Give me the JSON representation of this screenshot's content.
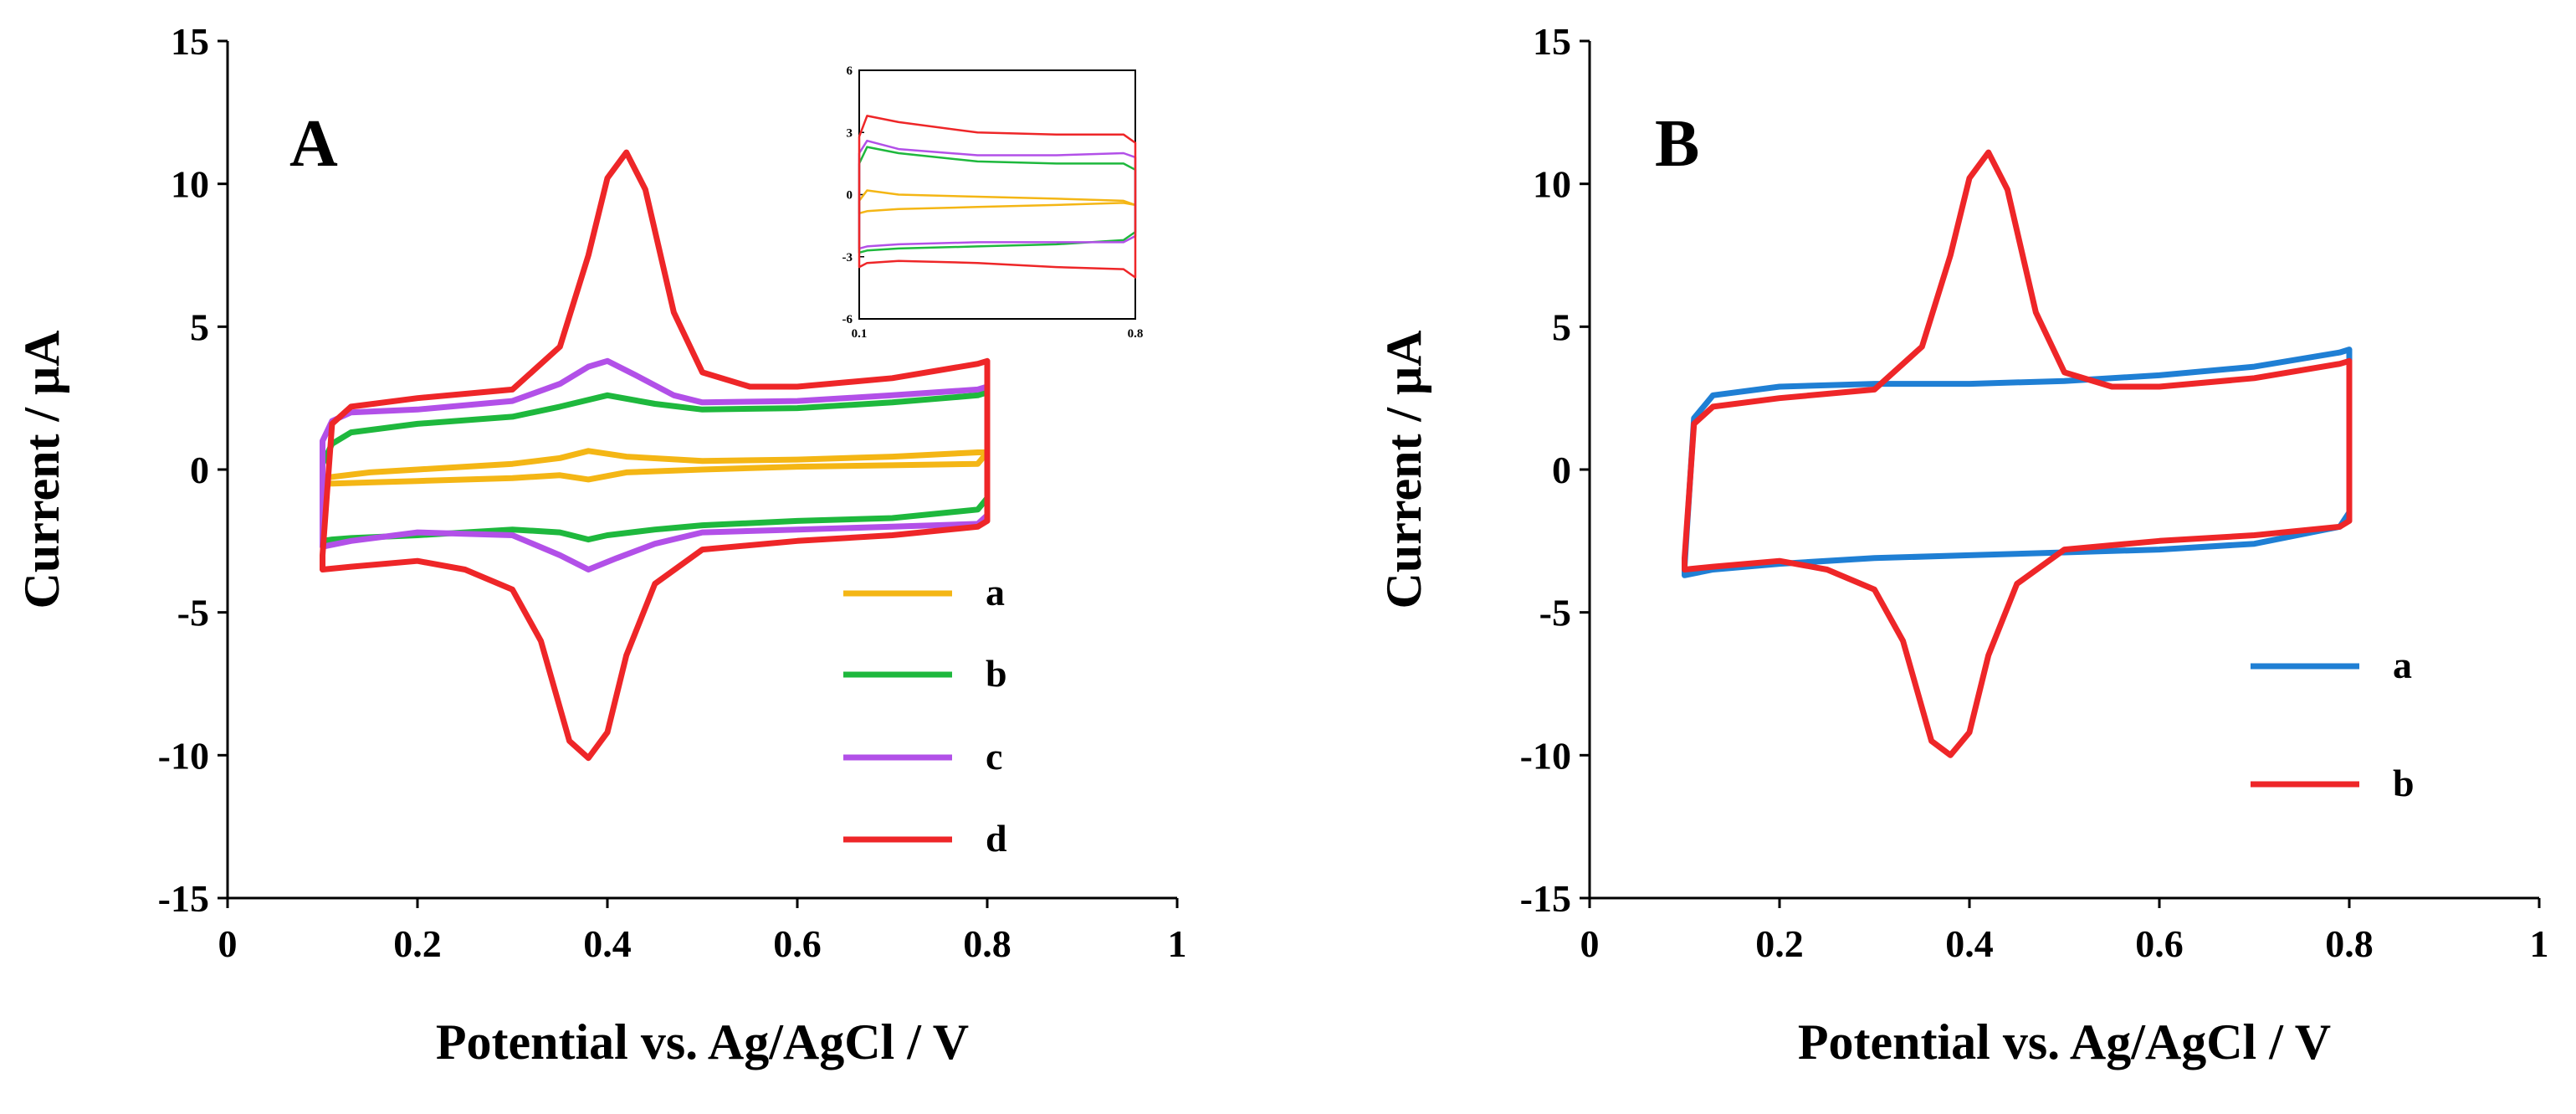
{
  "chart_data": [
    {
      "panel": "A",
      "type": "line",
      "xlabel": "Potential vs. Ag/AgCl / V",
      "ylabel": "Current / μA",
      "xlim": [
        0,
        1
      ],
      "ylim": [
        -15,
        15
      ],
      "xticks": [
        "0",
        "0.2",
        "0.4",
        "0.6",
        "0.8",
        "1"
      ],
      "yticks": [
        "15",
        "10",
        "5",
        "0",
        "-5",
        "-10",
        "-15"
      ],
      "legend_position": "bottom-right",
      "series": [
        {
          "name": "a",
          "color": "#f4b615",
          "x": [
            0.1,
            0.15,
            0.2,
            0.3,
            0.35,
            0.38,
            0.42,
            0.5,
            0.6,
            0.7,
            0.79,
            0.8,
            0.79,
            0.7,
            0.6,
            0.5,
            0.42,
            0.38,
            0.35,
            0.3,
            0.2,
            0.15,
            0.1,
            0.1
          ],
          "y": [
            -0.3,
            -0.1,
            0.0,
            0.2,
            0.4,
            0.65,
            0.45,
            0.3,
            0.35,
            0.45,
            0.6,
            0.6,
            0.2,
            0.15,
            0.1,
            0.0,
            -0.1,
            -0.35,
            -0.2,
            -0.3,
            -0.4,
            -0.45,
            -0.5,
            -0.3
          ]
        },
        {
          "name": "b",
          "color": "#1eb83d",
          "x": [
            0.1,
            0.11,
            0.13,
            0.2,
            0.3,
            0.35,
            0.4,
            0.45,
            0.5,
            0.6,
            0.7,
            0.79,
            0.8,
            0.8,
            0.79,
            0.7,
            0.6,
            0.5,
            0.45,
            0.4,
            0.38,
            0.35,
            0.3,
            0.2,
            0.13,
            0.11,
            0.1,
            0.1
          ],
          "y": [
            0.2,
            0.9,
            1.3,
            1.6,
            1.85,
            2.2,
            2.6,
            2.3,
            2.1,
            2.15,
            2.35,
            2.6,
            2.7,
            -1.0,
            -1.4,
            -1.7,
            -1.8,
            -1.95,
            -2.1,
            -2.3,
            -2.45,
            -2.2,
            -2.1,
            -2.3,
            -2.4,
            -2.45,
            -2.5,
            0.2
          ]
        },
        {
          "name": "c",
          "color": "#b250e8",
          "x": [
            0.1,
            0.11,
            0.13,
            0.2,
            0.3,
            0.35,
            0.38,
            0.4,
            0.43,
            0.47,
            0.5,
            0.6,
            0.7,
            0.79,
            0.8,
            0.8,
            0.79,
            0.7,
            0.6,
            0.5,
            0.45,
            0.41,
            0.38,
            0.35,
            0.3,
            0.2,
            0.13,
            0.1,
            0.1
          ],
          "y": [
            1.0,
            1.7,
            2.0,
            2.1,
            2.4,
            3.0,
            3.6,
            3.8,
            3.3,
            2.6,
            2.35,
            2.4,
            2.6,
            2.8,
            2.9,
            -1.6,
            -1.9,
            -2.0,
            -2.1,
            -2.2,
            -2.6,
            -3.1,
            -3.5,
            -3.0,
            -2.3,
            -2.2,
            -2.5,
            -2.7,
            1.0
          ]
        },
        {
          "name": "d",
          "color": "#ee2628",
          "x": [
            0.1,
            0.11,
            0.13,
            0.2,
            0.3,
            0.35,
            0.38,
            0.4,
            0.42,
            0.44,
            0.47,
            0.5,
            0.55,
            0.6,
            0.7,
            0.79,
            0.8,
            0.8,
            0.79,
            0.7,
            0.6,
            0.5,
            0.45,
            0.42,
            0.4,
            0.38,
            0.36,
            0.33,
            0.3,
            0.25,
            0.2,
            0.13,
            0.1,
            0.1
          ],
          "y": [
            -3.0,
            1.6,
            2.2,
            2.5,
            2.8,
            4.3,
            7.5,
            10.2,
            11.1,
            9.8,
            5.5,
            3.4,
            2.9,
            2.9,
            3.2,
            3.7,
            3.8,
            -1.8,
            -2.0,
            -2.3,
            -2.5,
            -2.8,
            -4.0,
            -6.5,
            -9.2,
            -10.1,
            -9.5,
            -6.0,
            -4.2,
            -3.5,
            -3.2,
            -3.4,
            -3.5,
            -3.0
          ]
        }
      ],
      "inset": {
        "xlim": [
          0.1,
          0.8
        ],
        "ylim": [
          -6,
          6
        ],
        "xticks": [
          "0.1",
          "0.8"
        ],
        "yticks": [
          "6",
          "3",
          "0",
          "-3",
          "-6"
        ],
        "series": [
          {
            "name": "a",
            "color": "#f4b615",
            "x": [
              0.1,
              0.12,
              0.2,
              0.4,
              0.6,
              0.77,
              0.8,
              0.8,
              0.77,
              0.6,
              0.4,
              0.2,
              0.12,
              0.1,
              0.1
            ],
            "y": [
              -0.3,
              0.2,
              0.0,
              -0.1,
              -0.2,
              -0.3,
              -0.5,
              -0.5,
              -0.4,
              -0.5,
              -0.6,
              -0.7,
              -0.8,
              -0.9,
              -0.3
            ]
          },
          {
            "name": "b",
            "color": "#1eb83d",
            "x": [
              0.1,
              0.12,
              0.2,
              0.4,
              0.6,
              0.77,
              0.8,
              0.8,
              0.77,
              0.6,
              0.4,
              0.2,
              0.12,
              0.1,
              0.1
            ],
            "y": [
              1.5,
              2.3,
              2.0,
              1.6,
              1.5,
              1.5,
              1.2,
              -1.8,
              -2.2,
              -2.4,
              -2.5,
              -2.6,
              -2.7,
              -2.8,
              1.5
            ]
          },
          {
            "name": "c",
            "color": "#b250e8",
            "x": [
              0.1,
              0.12,
              0.2,
              0.4,
              0.6,
              0.77,
              0.8,
              0.8,
              0.77,
              0.6,
              0.4,
              0.2,
              0.12,
              0.1,
              0.1
            ],
            "y": [
              2.0,
              2.6,
              2.2,
              1.9,
              1.9,
              2.0,
              1.8,
              -2.0,
              -2.3,
              -2.3,
              -2.3,
              -2.4,
              -2.5,
              -2.6,
              2.0
            ]
          },
          {
            "name": "d",
            "color": "#ee2628",
            "x": [
              0.1,
              0.12,
              0.2,
              0.4,
              0.6,
              0.77,
              0.8,
              0.8,
              0.77,
              0.6,
              0.4,
              0.2,
              0.12,
              0.1,
              0.1
            ],
            "y": [
              2.8,
              3.8,
              3.5,
              3.0,
              2.9,
              2.9,
              2.5,
              -4.0,
              -3.6,
              -3.5,
              -3.3,
              -3.2,
              -3.3,
              -3.5,
              2.8
            ]
          }
        ]
      }
    },
    {
      "panel": "B",
      "type": "line",
      "xlabel": "Potential vs. Ag/AgCl / V",
      "ylabel": "Current / μA",
      "xlim": [
        0,
        1
      ],
      "ylim": [
        -15,
        15
      ],
      "xticks": [
        "0",
        "0.2",
        "0.4",
        "0.6",
        "0.8",
        "1"
      ],
      "yticks": [
        "15",
        "10",
        "5",
        "0",
        "-5",
        "-10",
        "-15"
      ],
      "legend_position": "bottom-right",
      "series": [
        {
          "name": "a",
          "color": "#1f7fd4",
          "x": [
            0.1,
            0.11,
            0.13,
            0.2,
            0.3,
            0.4,
            0.5,
            0.6,
            0.7,
            0.79,
            0.8,
            0.8,
            0.79,
            0.7,
            0.6,
            0.5,
            0.4,
            0.3,
            0.2,
            0.13,
            0.1,
            0.1
          ],
          "y": [
            -3.4,
            1.8,
            2.6,
            2.9,
            3.0,
            3.0,
            3.1,
            3.3,
            3.6,
            4.1,
            4.2,
            -1.5,
            -2.0,
            -2.6,
            -2.8,
            -2.9,
            -3.0,
            -3.1,
            -3.3,
            -3.5,
            -3.7,
            -3.4
          ]
        },
        {
          "name": "b",
          "color": "#ee2628",
          "x": [
            0.1,
            0.11,
            0.13,
            0.2,
            0.3,
            0.35,
            0.38,
            0.4,
            0.42,
            0.44,
            0.47,
            0.5,
            0.55,
            0.6,
            0.7,
            0.79,
            0.8,
            0.8,
            0.79,
            0.7,
            0.6,
            0.5,
            0.45,
            0.42,
            0.4,
            0.38,
            0.36,
            0.33,
            0.3,
            0.25,
            0.2,
            0.13,
            0.1,
            0.1
          ],
          "y": [
            -3.1,
            1.6,
            2.2,
            2.5,
            2.8,
            4.3,
            7.5,
            10.2,
            11.1,
            9.8,
            5.5,
            3.4,
            2.9,
            2.9,
            3.2,
            3.7,
            3.8,
            -1.8,
            -2.0,
            -2.3,
            -2.5,
            -2.8,
            -4.0,
            -6.5,
            -9.2,
            -10.0,
            -9.5,
            -6.0,
            -4.2,
            -3.5,
            -3.2,
            -3.4,
            -3.5,
            -3.1
          ]
        }
      ]
    }
  ]
}
